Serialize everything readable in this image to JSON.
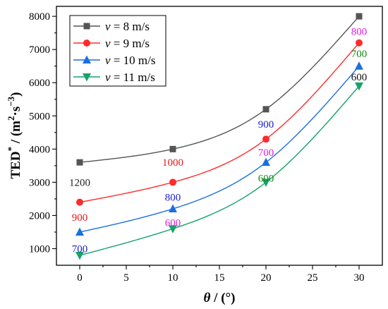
{
  "chart_data": {
    "type": "line",
    "xlabel_symbol": "θ",
    "xlabel_unit": " / (°)",
    "ylabel_main": "TED",
    "ylabel_sup": "*",
    "ylabel_unit_open": " / (m",
    "ylabel_unit_sup1": "2",
    "ylabel_unit_mid": "·s",
    "ylabel_unit_sup2": "−3",
    "ylabel_unit_close": ")",
    "xlim": [
      -2.5,
      32.5
    ],
    "ylim": [
      500,
      8300
    ],
    "x_ticks": [
      0,
      5,
      10,
      15,
      20,
      25,
      30
    ],
    "x_tick_labels": [
      "0",
      "5",
      "10",
      "15",
      "20",
      "25",
      "30"
    ],
    "y_ticks": [
      1000,
      2000,
      3000,
      4000,
      5000,
      6000,
      7000,
      8000
    ],
    "y_tick_labels": [
      "1000",
      "2000",
      "3000",
      "4000",
      "5000",
      "6000",
      "7000",
      "8000"
    ],
    "x": [
      0,
      10,
      20,
      30
    ],
    "legend_position": "top-left",
    "series": [
      {
        "symbol": "v",
        "name_rest": " = 8 m/s",
        "color": "#555555",
        "marker": "square",
        "values": [
          3600,
          4000,
          5200,
          8000
        ]
      },
      {
        "symbol": "v",
        "name_rest": " = 9 m/s",
        "color": "#ff2b2b",
        "marker": "circle",
        "values": [
          2400,
          3000,
          4300,
          7200
        ]
      },
      {
        "symbol": "v",
        "name_rest": " = 10 m/s",
        "color": "#1a6fe0",
        "marker": "triangle-up",
        "values": [
          1500,
          2200,
          3600,
          6500
        ]
      },
      {
        "symbol": "v",
        "name_rest": " = 11 m/s",
        "color": "#14a36a",
        "marker": "triangle-down",
        "values": [
          800,
          1600,
          3000,
          5900
        ]
      }
    ],
    "annotations": [
      {
        "text": "1200",
        "x": 0,
        "y": 3000,
        "color": "#222222"
      },
      {
        "text": "900",
        "x": 0,
        "y": 1950,
        "color": "#e81515"
      },
      {
        "text": "700",
        "x": 0,
        "y": 1000,
        "color": "#1a1ad0"
      },
      {
        "text": "1000",
        "x": 10,
        "y": 3600,
        "color": "#e81515"
      },
      {
        "text": "800",
        "x": 10,
        "y": 2550,
        "color": "#1a1ad0"
      },
      {
        "text": "600",
        "x": 10,
        "y": 1790,
        "color": "#e31ae0"
      },
      {
        "text": "900",
        "x": 20,
        "y": 4750,
        "color": "#1a1ad0"
      },
      {
        "text": "700",
        "x": 20,
        "y": 3900,
        "color": "#e31ae0"
      },
      {
        "text": "600",
        "x": 20,
        "y": 3130,
        "color": "#138a13"
      },
      {
        "text": "800",
        "x": 30,
        "y": 7550,
        "color": "#e31ae0"
      },
      {
        "text": "700",
        "x": 30,
        "y": 6880,
        "color": "#138a13"
      },
      {
        "text": "600",
        "x": 30,
        "y": 6170,
        "color": "#111111"
      }
    ]
  }
}
